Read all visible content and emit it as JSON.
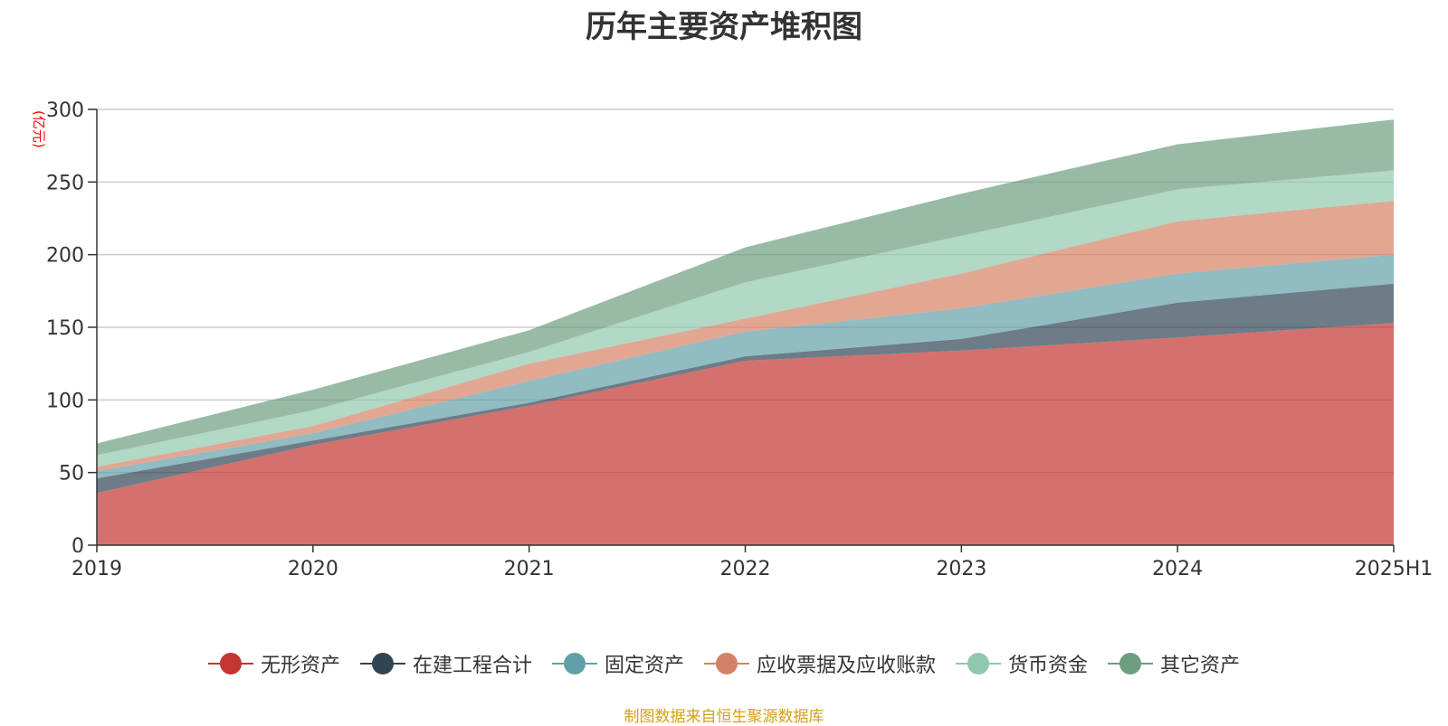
{
  "title": "历年主要资产堆积图",
  "source": "制图数据来自恒生聚源数据库",
  "chart_data": {
    "type": "area",
    "stacked": true,
    "title": "历年主要资产堆积图",
    "ylabel": "(亿元)",
    "x": [
      "2019",
      "2020",
      "2021",
      "2022",
      "2023",
      "2024",
      "2025H1"
    ],
    "ylim": [
      0,
      300
    ],
    "yticks": [
      0,
      50,
      100,
      150,
      200,
      250,
      300
    ],
    "grid": true,
    "legend_position": "bottom",
    "series": [
      {
        "name": "无形资产",
        "color": "#c23531",
        "values": [
          36,
          69,
          96,
          127,
          134,
          143,
          153
        ]
      },
      {
        "name": "在建工程合计",
        "color": "#2f4554",
        "values": [
          10,
          3,
          2,
          3,
          8,
          24,
          27
        ]
      },
      {
        "name": "固定资产",
        "color": "#61a0a8",
        "values": [
          5,
          5,
          15,
          17,
          21,
          20,
          20
        ]
      },
      {
        "name": "应收票据及应收账款",
        "color": "#d48265",
        "values": [
          3,
          5,
          12,
          9,
          24,
          36,
          37
        ]
      },
      {
        "name": "货币资金",
        "color": "#91c7ae",
        "values": [
          8,
          11,
          8,
          25,
          26,
          22,
          21
        ]
      },
      {
        "name": "其它资产",
        "color": "#6e9d7f",
        "values": [
          8,
          14,
          15,
          24,
          29,
          31,
          35
        ]
      }
    ]
  }
}
